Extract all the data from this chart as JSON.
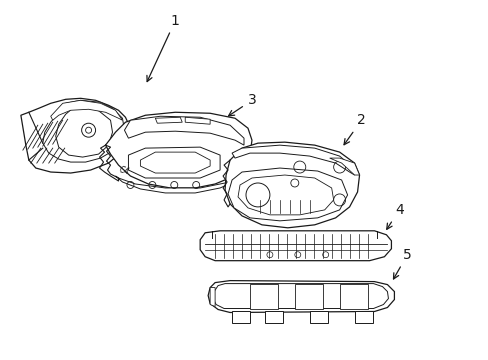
{
  "background_color": "#ffffff",
  "line_color": "#1a1a1a",
  "line_width": 0.9,
  "figure_width": 4.89,
  "figure_height": 3.6,
  "dpi": 100,
  "font_size": 10,
  "label_font_size": 9
}
